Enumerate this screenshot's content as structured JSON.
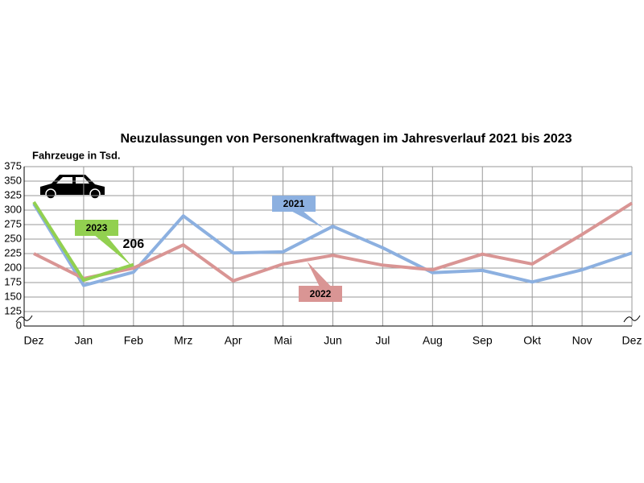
{
  "chart_data": {
    "type": "line",
    "title": "Neuzulassungen von Personenkraftwagen im Jahresverlauf 2021 bis 2023",
    "y_axis_label": "Fahrzeuge in Tsd.",
    "categories": [
      "Dez",
      "Jan",
      "Feb",
      "Mrz",
      "Apr",
      "Mai",
      "Jun",
      "Jul",
      "Aug",
      "Sep",
      "Okt",
      "Nov",
      "Dez"
    ],
    "series": [
      {
        "name": "2021",
        "color": "#8cb0e0",
        "values": [
          311,
          170,
          193,
          290,
          226,
          228,
          272,
          235,
          192,
          196,
          176,
          197,
          226
        ]
      },
      {
        "name": "2022",
        "color": "#d99594",
        "values": [
          225,
          182,
          200,
          240,
          178,
          207,
          222,
          205,
          197,
          224,
          207,
          258,
          312
        ]
      },
      {
        "name": "2023",
        "color": "#92d050",
        "values": [
          314,
          179,
          206,
          null,
          null,
          null,
          null,
          null,
          null,
          null,
          null,
          null,
          null
        ]
      }
    ],
    "ylim": [
      0,
      375
    ],
    "y_break": [
      0,
      125
    ],
    "yticks": [
      0,
      125,
      150,
      175,
      200,
      225,
      250,
      275,
      300,
      325,
      350,
      375
    ],
    "grid": true
  }
}
